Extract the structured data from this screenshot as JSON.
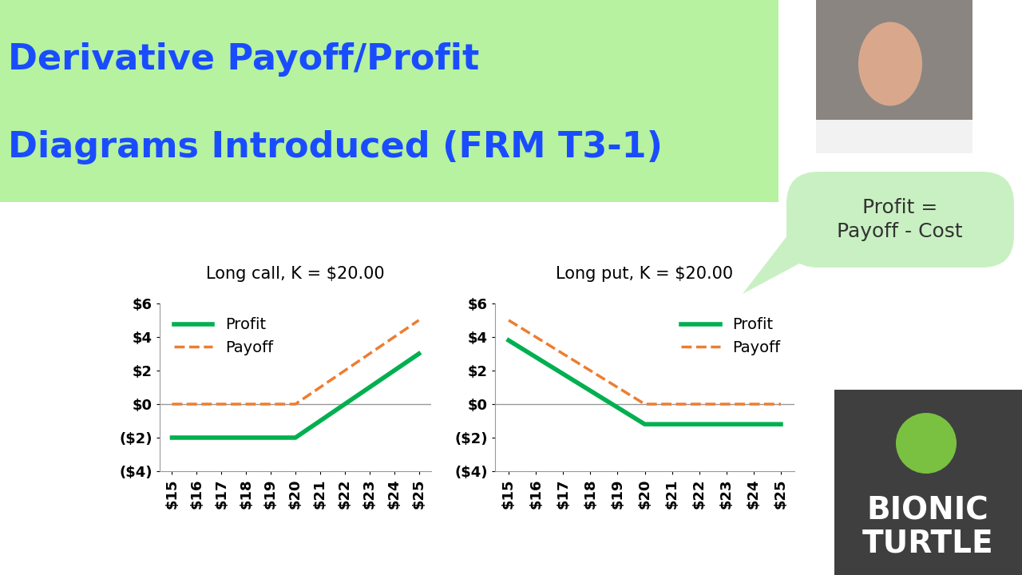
{
  "header": {
    "lines": [
      "Derivative Payoff/Profit",
      "Diagrams Introduced (FRM T3-1)"
    ]
  },
  "callout": {
    "lines": [
      "Profit =",
      "Payoff - Cost"
    ]
  },
  "logo": {
    "lines": [
      "BIONIC",
      "TURTLE"
    ]
  },
  "chart_data": [
    {
      "type": "line",
      "title": "Long call, K = $20.00",
      "categories": [
        "$15",
        "$16",
        "$17",
        "$18",
        "$19",
        "$20",
        "$21",
        "$22",
        "$23",
        "$24",
        "$25"
      ],
      "series": [
        {
          "name": "Profit",
          "color": "#00b050",
          "line_style": "solid",
          "values": [
            -2,
            -2,
            -2,
            -2,
            -2,
            -2,
            -1,
            0,
            1,
            2,
            3
          ]
        },
        {
          "name": "Payoff",
          "color": "#ed7d31",
          "line_style": "dashed",
          "values": [
            0,
            0,
            0,
            0,
            0,
            0,
            1,
            2,
            3,
            4,
            5
          ]
        }
      ],
      "ylim": [
        -4,
        6
      ],
      "yticks": [
        {
          "value": 6,
          "label": "$6"
        },
        {
          "value": 4,
          "label": "$4"
        },
        {
          "value": 2,
          "label": "$2"
        },
        {
          "value": 0,
          "label": "$0"
        },
        {
          "value": -2,
          "label": "($2)"
        },
        {
          "value": -4,
          "label": "($4)"
        }
      ],
      "legend": "upper left",
      "grid": false
    },
    {
      "type": "line",
      "title": "Long put, K = $20.00",
      "categories": [
        "$15",
        "$16",
        "$17",
        "$18",
        "$19",
        "$20",
        "$21",
        "$22",
        "$23",
        "$24",
        "$25"
      ],
      "series": [
        {
          "name": "Profit",
          "color": "#00b050",
          "line_style": "solid",
          "values": [
            3.8,
            2.8,
            1.8,
            0.8,
            -0.2,
            -1.2,
            -1.2,
            -1.2,
            -1.2,
            -1.2,
            -1.2
          ]
        },
        {
          "name": "Payoff",
          "color": "#ed7d31",
          "line_style": "dashed",
          "values": [
            5,
            4,
            3,
            2,
            1,
            0,
            0,
            0,
            0,
            0,
            0
          ]
        }
      ],
      "ylim": [
        -4,
        6
      ],
      "yticks": [
        {
          "value": 6,
          "label": "$6"
        },
        {
          "value": 4,
          "label": "$4"
        },
        {
          "value": 2,
          "label": "$2"
        },
        {
          "value": 0,
          "label": "$0"
        },
        {
          "value": -2,
          "label": "($2)"
        },
        {
          "value": -4,
          "label": "($4)"
        }
      ],
      "legend": "upper right",
      "grid": false
    }
  ]
}
